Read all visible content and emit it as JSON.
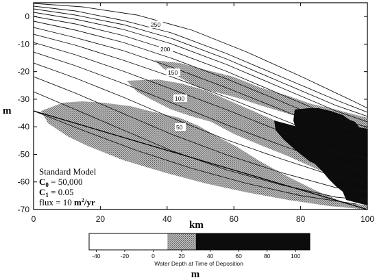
{
  "chart_data": {
    "type": "cross-section",
    "x_axis": {
      "unit_label": "km",
      "range": [
        0,
        100
      ],
      "ticks": [
        0,
        20,
        40,
        60,
        80,
        100
      ]
    },
    "y_axis": {
      "unit_label": "m",
      "range": [
        -70,
        5
      ],
      "ticks": [
        0,
        -10,
        -20,
        -30,
        -40,
        -50,
        -60,
        -70
      ]
    },
    "contour_labels": [
      "250",
      "200",
      "150",
      "100",
      "50"
    ],
    "legend": {
      "title": "Standard Model",
      "c0_name": "C",
      "c0_sub": "0",
      "c0_value": " = 50,000",
      "c1_name": "C",
      "c1_sub": "1",
      "c1_value": " = 0.05",
      "flux_text": "flux = 10 ",
      "flux_unit": "m",
      "flux_exp": "2",
      "flux_tail": "/yr"
    },
    "colorbar": {
      "caption": "Water Depth at Time of Deposition",
      "unit_label": "m",
      "ticks": [
        "-40",
        "-20",
        "0",
        "20",
        "40",
        "60",
        "80",
        "100"
      ],
      "segments": [
        {
          "from": -45,
          "to": 10,
          "shade": "#ffffff"
        },
        {
          "from": 10,
          "to": 30,
          "shade": "#8a8a8a"
        },
        {
          "from": 30,
          "to": 110,
          "shade": "#0c0c0c"
        }
      ]
    },
    "colors": {
      "shallow": "#ffffff",
      "intermediate": "#8a8a8a",
      "deep": "#0c0c0c",
      "lines": "#111111"
    }
  }
}
